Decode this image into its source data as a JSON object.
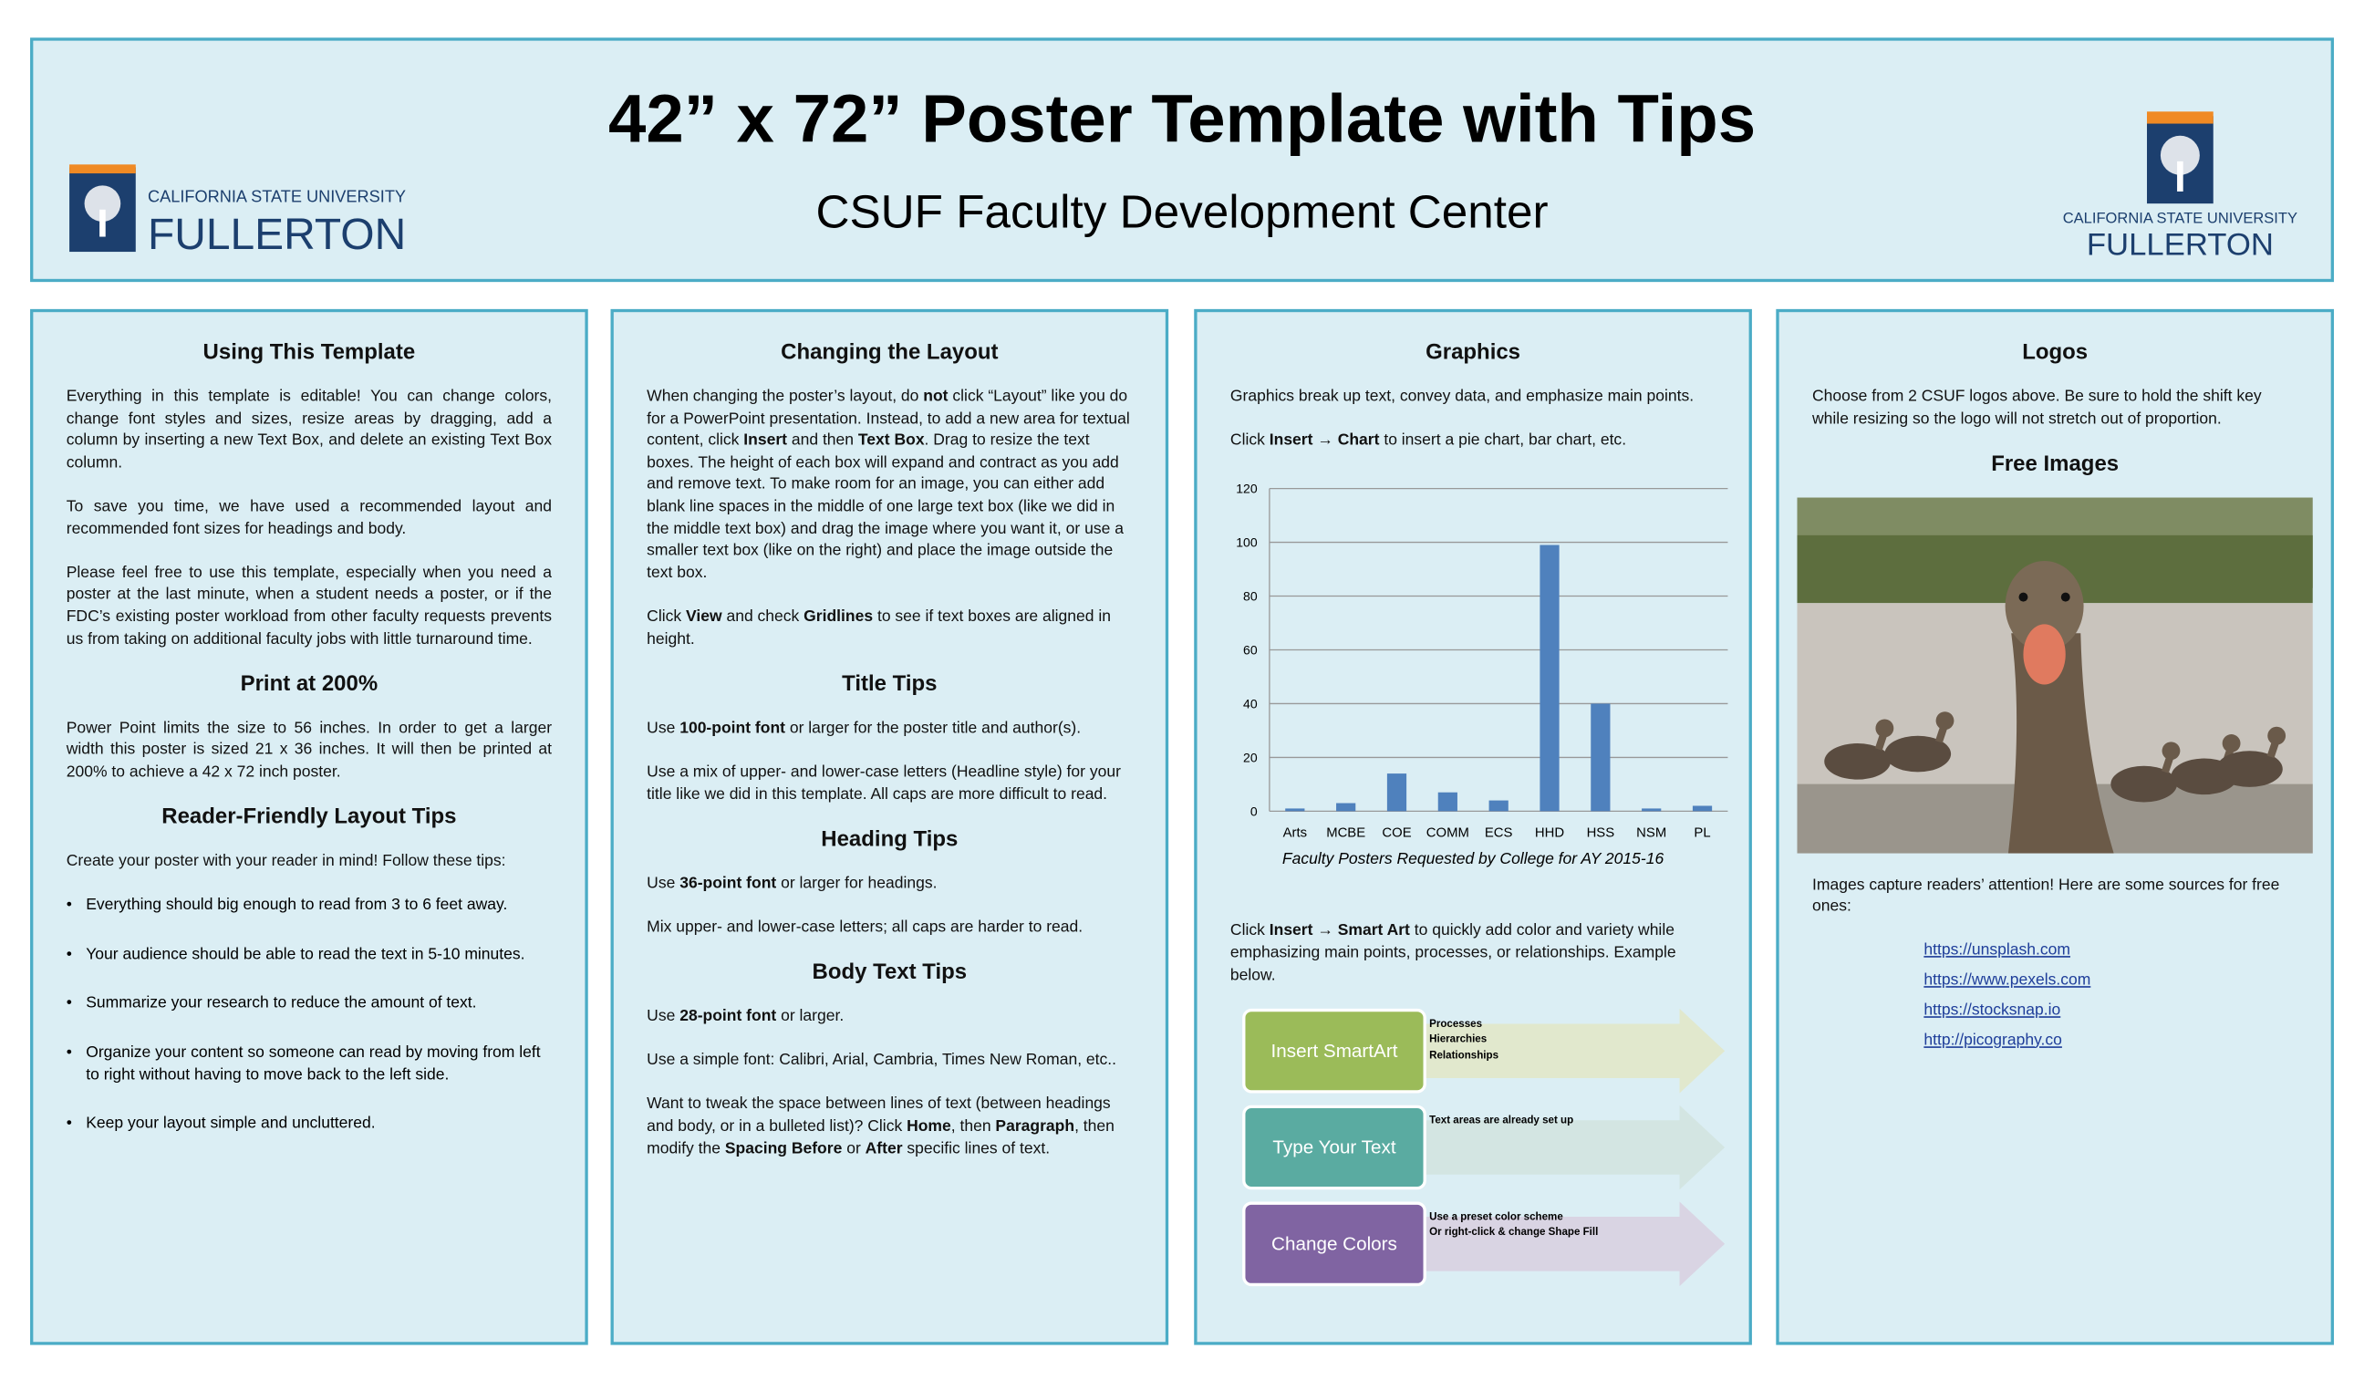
{
  "header": {
    "title": "42” x 72” Poster Template with Tips",
    "subtitle": "CSUF Faculty Development Center",
    "logo_left": {
      "line1": "CALIFORNIA STATE UNIVERSITY",
      "line2": "FULLERTON"
    },
    "logo_right": {
      "line1": "CALIFORNIA STATE UNIVERSITY",
      "line2": "FULLERTON"
    }
  },
  "columns": [
    {
      "blocks": [
        {
          "heading": "Using This Template"
        },
        {
          "paragraph": [
            "Everything in this template is editable! You can change colors, change font styles and sizes, resize areas by dragging, add a column by inserting a new Text Box, and delete an existing Text Box column."
          ]
        },
        {
          "paragraph": [
            "To save you time, we have used a recommended layout and recommended font sizes for headings and body."
          ]
        },
        {
          "paragraph": [
            "Please feel free to use this template, especially when you need a poster at the last minute, when a student needs a poster, or if the FDC’s existing poster workload from other faculty requests prevents us from taking on additional faculty jobs with little turnaround time."
          ]
        },
        {
          "heading": "Print at 200%"
        },
        {
          "paragraph": [
            "Power Point limits the size to 56 inches. In order to get a larger width this poster is sized 21 x 36 inches. It will then be printed at 200% to achieve a 42 x 72 inch poster."
          ]
        },
        {
          "heading": "Reader-Friendly Layout Tips"
        },
        {
          "paragraph": [
            "Create your poster with your reader in mind! Follow these tips:"
          ]
        },
        {
          "bullets": [
            "Everything should big enough to read from 3 to 6 feet away.",
            "Your audience should be able to read the text in 5-10 minutes.",
            "Summarize your research to reduce the amount of text.",
            "Organize your content so someone can read by moving from left to right without having to move back to the left side.",
            "Keep your layout simple and uncluttered."
          ]
        }
      ]
    },
    {
      "blocks": [
        {
          "heading": "Changing the Layout"
        },
        {
          "paragraph": [
            "When changing the poster’s layout, do ",
            {
              "text": "not",
              "bold": true
            },
            " click “Layout” like you do for a PowerPoint presentation. Instead, to add a new area for textual content, click ",
            {
              "text": "Insert",
              "bold": true
            },
            " and then ",
            {
              "text": "Text Box",
              "bold": true
            },
            ". Drag to resize the text boxes. The height of each box will expand and contract as you add and remove text. To make room for an image, you can either add blank line spaces in the middle of one large text box (like we did in the middle text box) and drag the image where you want it, or use a smaller text box (like on the right) and place the image outside the text box."
          ]
        },
        {
          "paragraph": [
            "Click ",
            {
              "text": "View",
              "bold": true
            },
            " and check ",
            {
              "text": "Gridlines",
              "bold": true
            },
            " to see if text boxes are aligned in height."
          ]
        },
        {
          "heading": "Title Tips"
        },
        {
          "paragraph": [
            "Use ",
            {
              "text": "100-point font",
              "bold": true
            },
            " or larger for the poster title and author(s)."
          ]
        },
        {
          "paragraph": [
            "Use a mix of upper- and lower-case letters (Headline style) for your title like we did in this template. All caps are more difficult to read."
          ]
        },
        {
          "heading": "Heading Tips"
        },
        {
          "paragraph": [
            "Use ",
            {
              "text": "36-point font",
              "bold": true
            },
            " or larger for headings."
          ]
        },
        {
          "paragraph": [
            "Mix upper- and lower-case letters; all caps are harder to read."
          ]
        },
        {
          "heading": "Body Text Tips"
        },
        {
          "paragraph": [
            "Use ",
            {
              "text": "28-point font",
              "bold": true
            },
            " or larger."
          ]
        },
        {
          "paragraph": [
            "Use a simple font: Calibri, Arial, Cambria, Times New Roman, etc.."
          ]
        },
        {
          "paragraph": [
            "Want to tweak the space between lines of text (between headings and body, or in a bulleted list)? Click ",
            {
              "text": "Home",
              "bold": true
            },
            ", then ",
            {
              "text": "Paragraph",
              "bold": true
            },
            ", then modify the ",
            {
              "text": "Spacing Before",
              "bold": true
            },
            " or ",
            {
              "text": "After",
              "bold": true
            },
            " specific lines of text."
          ]
        }
      ]
    },
    {
      "blocks": [
        {
          "heading": "Graphics"
        },
        {
          "paragraph": [
            "Graphics break up text, convey data, and emphasize main points."
          ]
        },
        {
          "paragraph": [
            "Click ",
            {
              "text": "Insert",
              "bold": true
            },
            " → ",
            {
              "text": "Chart",
              "bold": true
            },
            " to insert a pie chart, bar chart, etc."
          ]
        },
        {
          "chart": {
            "type": "bar",
            "categories": [
              "Arts",
              "MCBE",
              "COE",
              "COMM",
              "ECS",
              "HHD",
              "HSS",
              "NSM",
              "PL"
            ],
            "values": [
              1,
              3,
              14,
              7,
              4,
              99,
              40,
              1,
              2
            ],
            "color": "#4f81bd",
            "ylim": [
              0,
              120
            ],
            "yticks": [
              0,
              20,
              40,
              60,
              80,
              100,
              120
            ],
            "grid": true,
            "caption": "Faculty Posters Requested by College for AY 2015-16"
          }
        },
        {
          "paragraph": [
            "Click ",
            {
              "text": "Insert",
              "bold": true
            },
            " → ",
            {
              "text": "Smart Art",
              "bold": true
            },
            " to quickly add color and variety while emphasizing main points, processes, or relationships. Example below."
          ]
        },
        {
          "smartart": [
            {
              "label": "Insert SmartArt",
              "color": "#9bbb59",
              "arrow": "#e1e8cd",
              "bullets": [
                "Processes",
                "Hierarchies",
                "Relationships"
              ]
            },
            {
              "label": "Type Your Text",
              "color": "#5aaba1",
              "arrow": "#d3e5e2",
              "bullets": [
                "Text areas are already set up"
              ]
            },
            {
              "label": "Change Colors",
              "color": "#8064a2",
              "arrow": "#d9d4e3",
              "bullets": [
                "Use a preset color scheme",
                "Or right-click & change Shape Fill"
              ]
            }
          ]
        }
      ]
    },
    {
      "blocks": [
        {
          "heading": "Logos"
        },
        {
          "paragraph": [
            "Choose from 2 CSUF logos above. Be sure to hold the shift key while resizing so the logo will not stretch out of proportion."
          ]
        },
        {
          "heading": "Free Images"
        },
        {
          "image": true
        },
        {
          "paragraph": [
            "Images capture readers’ attention! Here are some sources for free ones:"
          ]
        },
        {
          "links": [
            "https://unsplash.com",
            "https://www.pexels.com",
            "https://stocksnap.io",
            "http://picography.co"
          ]
        }
      ]
    }
  ]
}
